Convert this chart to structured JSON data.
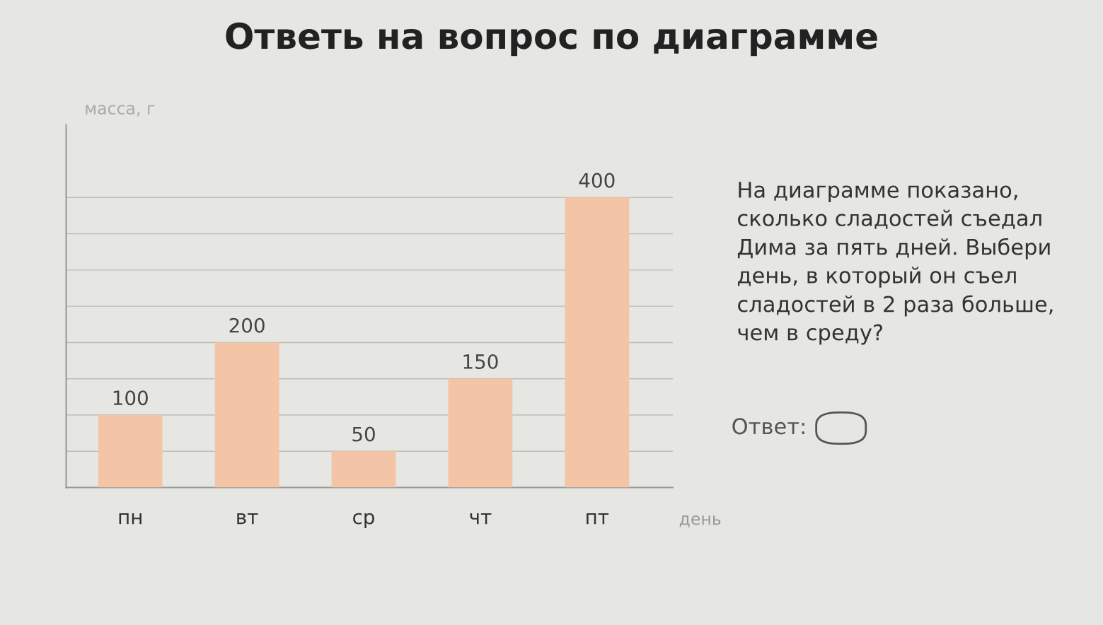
{
  "chart_data": {
    "type": "bar",
    "title": "Ответь на вопрос по диаграмме",
    "xlabel": "день",
    "ylabel": "масса, г",
    "categories": [
      "пн",
      "вт",
      "ср",
      "чт",
      "пт"
    ],
    "values": [
      100,
      200,
      50,
      150,
      400
    ],
    "color": "#f4c4a6",
    "data_labels": true,
    "ylim": [
      0,
      500
    ],
    "yticks": [
      {
        "value": 50,
        "label": null
      },
      {
        "value": 100,
        "label": null
      },
      {
        "value": 150,
        "label": null
      },
      {
        "value": 200,
        "label": null
      },
      {
        "value": 250,
        "label": null
      },
      {
        "value": 300,
        "label": null
      },
      {
        "value": 350,
        "label": null
      },
      {
        "value": 400,
        "label": null
      }
    ],
    "grid": "y",
    "tick_labels": "x",
    "annotations": [
      "На диаграмме показано,\nсколько сладостей съедал\nДима за пять дней. Выбери\nдень, в который он съел\nсладостей в 2 раза больше,\nчем в среду?",
      "Ответ:"
    ]
  }
}
